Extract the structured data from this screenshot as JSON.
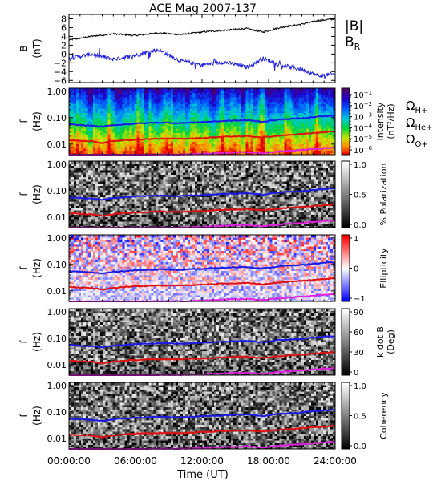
{
  "title": "ACE Mag 2007-137",
  "colors": {
    "b_total": "#000000",
    "b_r": "#2020e0",
    "h_plus": "#1a1ae6",
    "he_plus": "#e01010",
    "o_plus": "#e020e0"
  },
  "chart_data": [
    {
      "type": "line",
      "panel": "magnetic-field",
      "ylabel": "B",
      "yunit": "(nT)",
      "ylim": [
        -6.5,
        9
      ],
      "yticks": [
        8,
        6,
        4,
        2,
        0,
        -2,
        -4,
        -6
      ],
      "ytick_labels": [
        "8",
        "6",
        "4",
        "2",
        "0",
        "−2",
        "−4",
        "−6"
      ],
      "x": [
        0,
        2,
        4,
        6,
        8,
        10,
        12,
        14,
        16,
        17.5,
        19,
        21,
        22.5,
        24
      ],
      "series": [
        {
          "name": "|B|",
          "values": [
            3.2,
            4.0,
            4.6,
            4.2,
            4.8,
            4.4,
            5.0,
            5.4,
            5.8,
            5.0,
            6.0,
            6.8,
            7.6,
            8.0
          ]
        },
        {
          "name": "B",
          "name_sub": "R",
          "values": [
            -1.0,
            0.0,
            -1.2,
            -0.3,
            1.0,
            -1.5,
            -2.5,
            -1.8,
            -3.0,
            -1.0,
            -2.5,
            -3.5,
            -5.0,
            -4.5
          ]
        }
      ]
    },
    {
      "type": "heatmap",
      "panel": "intensity",
      "ylabel": "f",
      "yunit": "(Hz)",
      "yscale": "log",
      "ylim": [
        0.004,
        1.3
      ],
      "yticks": [
        1.0,
        0.1,
        0.01
      ],
      "ytick_labels": [
        "1.00",
        "0.10",
        "0.01"
      ],
      "colorbar": {
        "label": "Intensity",
        "label2": "(nT²/Hz)",
        "ticks": [
          {
            "base": "10",
            "exp": "−1"
          },
          {
            "base": "10",
            "exp": "−2"
          },
          {
            "base": "10",
            "exp": "−3"
          },
          {
            "base": "10",
            "exp": "−4"
          },
          {
            "base": "10",
            "exp": "−5"
          },
          {
            "base": "10",
            "exp": "−6"
          }
        ],
        "colormap": "rainbow"
      },
      "legend": [
        {
          "name": "Ω",
          "sub": "H+"
        },
        {
          "name": "Ω",
          "sub": "He+"
        },
        {
          "name": "Ω",
          "sub": "O+"
        }
      ]
    },
    {
      "type": "heatmap",
      "panel": "polarization",
      "ylabel": "f",
      "yunit": "(Hz)",
      "yscale": "log",
      "ylim": [
        0.004,
        1.3
      ],
      "yticks": [
        1.0,
        0.1,
        0.01
      ],
      "ytick_labels": [
        "1.00",
        "0.10",
        "0.01"
      ],
      "colorbar": {
        "label": "% Polarization",
        "ticks": [
          "1.0",
          "0.5",
          "0.0"
        ],
        "colormap": "gray"
      }
    },
    {
      "type": "heatmap",
      "panel": "ellipticity",
      "ylabel": "f",
      "yunit": "(Hz)",
      "yscale": "log",
      "ylim": [
        0.004,
        1.3
      ],
      "yticks": [
        1.0,
        0.1,
        0.01
      ],
      "ytick_labels": [
        "1.00",
        "0.10",
        "0.01"
      ],
      "colorbar": {
        "label": "Ellipticity",
        "ticks": [
          "1",
          "0",
          "−1"
        ],
        "colormap": "blue-white-red"
      }
    },
    {
      "type": "heatmap",
      "panel": "k-dot-b",
      "ylabel": "f",
      "yunit": "(Hz)",
      "yscale": "log",
      "ylim": [
        0.004,
        1.3
      ],
      "yticks": [
        1.0,
        0.1,
        0.01
      ],
      "ytick_labels": [
        "1.00",
        "0.10",
        "0.01"
      ],
      "colorbar": {
        "label": "k dot B",
        "label2": "(Deg)",
        "ticks": [
          "90",
          "60",
          "30",
          "0"
        ],
        "colormap": "gray"
      }
    },
    {
      "type": "heatmap",
      "panel": "coherency",
      "ylabel": "f",
      "yunit": "(Hz)",
      "yscale": "log",
      "ylim": [
        0.004,
        1.3
      ],
      "yticks": [
        1.0,
        0.1,
        0.01
      ],
      "ytick_labels": [
        "1.00",
        "0.10",
        "0.01"
      ],
      "colorbar": {
        "label": "Coherency",
        "ticks": [
          "1.0",
          "0.5",
          "0.0"
        ],
        "colormap": "gray"
      }
    }
  ],
  "gyrofrequency_lines": {
    "x": [
      0,
      2,
      3,
      4,
      6,
      8,
      10,
      12,
      14,
      16,
      17.5,
      19,
      21,
      22.5,
      24
    ],
    "h_plus": [
      0.055,
      0.05,
      0.045,
      0.052,
      0.06,
      0.065,
      0.062,
      0.068,
      0.075,
      0.08,
      0.07,
      0.085,
      0.095,
      0.11,
      0.12
    ],
    "he_plus": [
      0.014,
      0.013,
      0.011,
      0.013,
      0.015,
      0.016,
      0.016,
      0.017,
      0.019,
      0.02,
      0.018,
      0.021,
      0.024,
      0.027,
      0.03
    ],
    "o_plus": [
      0.0035,
      0.0032,
      0.0029,
      0.0032,
      0.0037,
      0.004,
      0.004,
      0.0043,
      0.0047,
      0.005,
      0.0045,
      0.0053,
      0.006,
      0.0068,
      0.0075
    ]
  },
  "x_axis": {
    "label": "Time (UT)",
    "xlim": [
      0,
      24
    ],
    "ticks": [
      0,
      6,
      12,
      18,
      24
    ],
    "tick_labels": [
      "00:00:00",
      "06:00:00",
      "12:00:00",
      "18:00:00",
      "24:00:00"
    ]
  }
}
